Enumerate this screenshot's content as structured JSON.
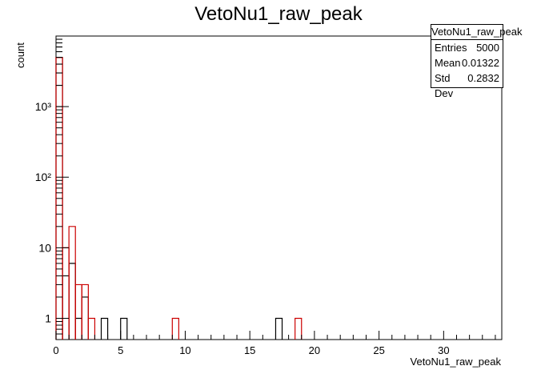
{
  "chart_data": {
    "type": "histogram",
    "title": "VetoNu1_raw_peak",
    "xlabel": "VetoNu1_raw_peak",
    "ylabel": "count",
    "xlim": [
      0,
      34.5
    ],
    "ylim": [
      0.5,
      10000
    ],
    "log_y": true,
    "bin_width": 0.5,
    "grid": false,
    "x_ticks": [
      "0",
      "5",
      "10",
      "15",
      "20",
      "25",
      "30"
    ],
    "y_ticks": [
      "1",
      "10",
      "10²",
      "10³"
    ],
    "series": [
      {
        "color": "#000000",
        "bins": [
          {
            "x": 0,
            "y": 4975
          },
          {
            "x": 0.5,
            "y": 4
          },
          {
            "x": 1.0,
            "y": 6
          },
          {
            "x": 1.5,
            "y": 1
          },
          {
            "x": 2.0,
            "y": 2
          },
          {
            "x": 3.5,
            "y": 1
          },
          {
            "x": 5.0,
            "y": 1
          },
          {
            "x": 17.0,
            "y": 1
          }
        ]
      },
      {
        "color": "#cc0000",
        "bins": [
          {
            "x": 0,
            "y": 4960
          },
          {
            "x": 0.5,
            "y": 10
          },
          {
            "x": 1.0,
            "y": 20
          },
          {
            "x": 1.5,
            "y": 3
          },
          {
            "x": 2.0,
            "y": 3
          },
          {
            "x": 2.5,
            "y": 1
          },
          {
            "x": 9.0,
            "y": 1
          },
          {
            "x": 18.5,
            "y": 1
          }
        ]
      }
    ]
  },
  "stats_box": {
    "title": "VetoNu1_raw_peak",
    "entries_label": "Entries",
    "entries_value": "5000",
    "mean_label": "Mean",
    "mean_value": "0.01322",
    "stddev_label": "Std Dev",
    "stddev_value": "0.2832"
  }
}
